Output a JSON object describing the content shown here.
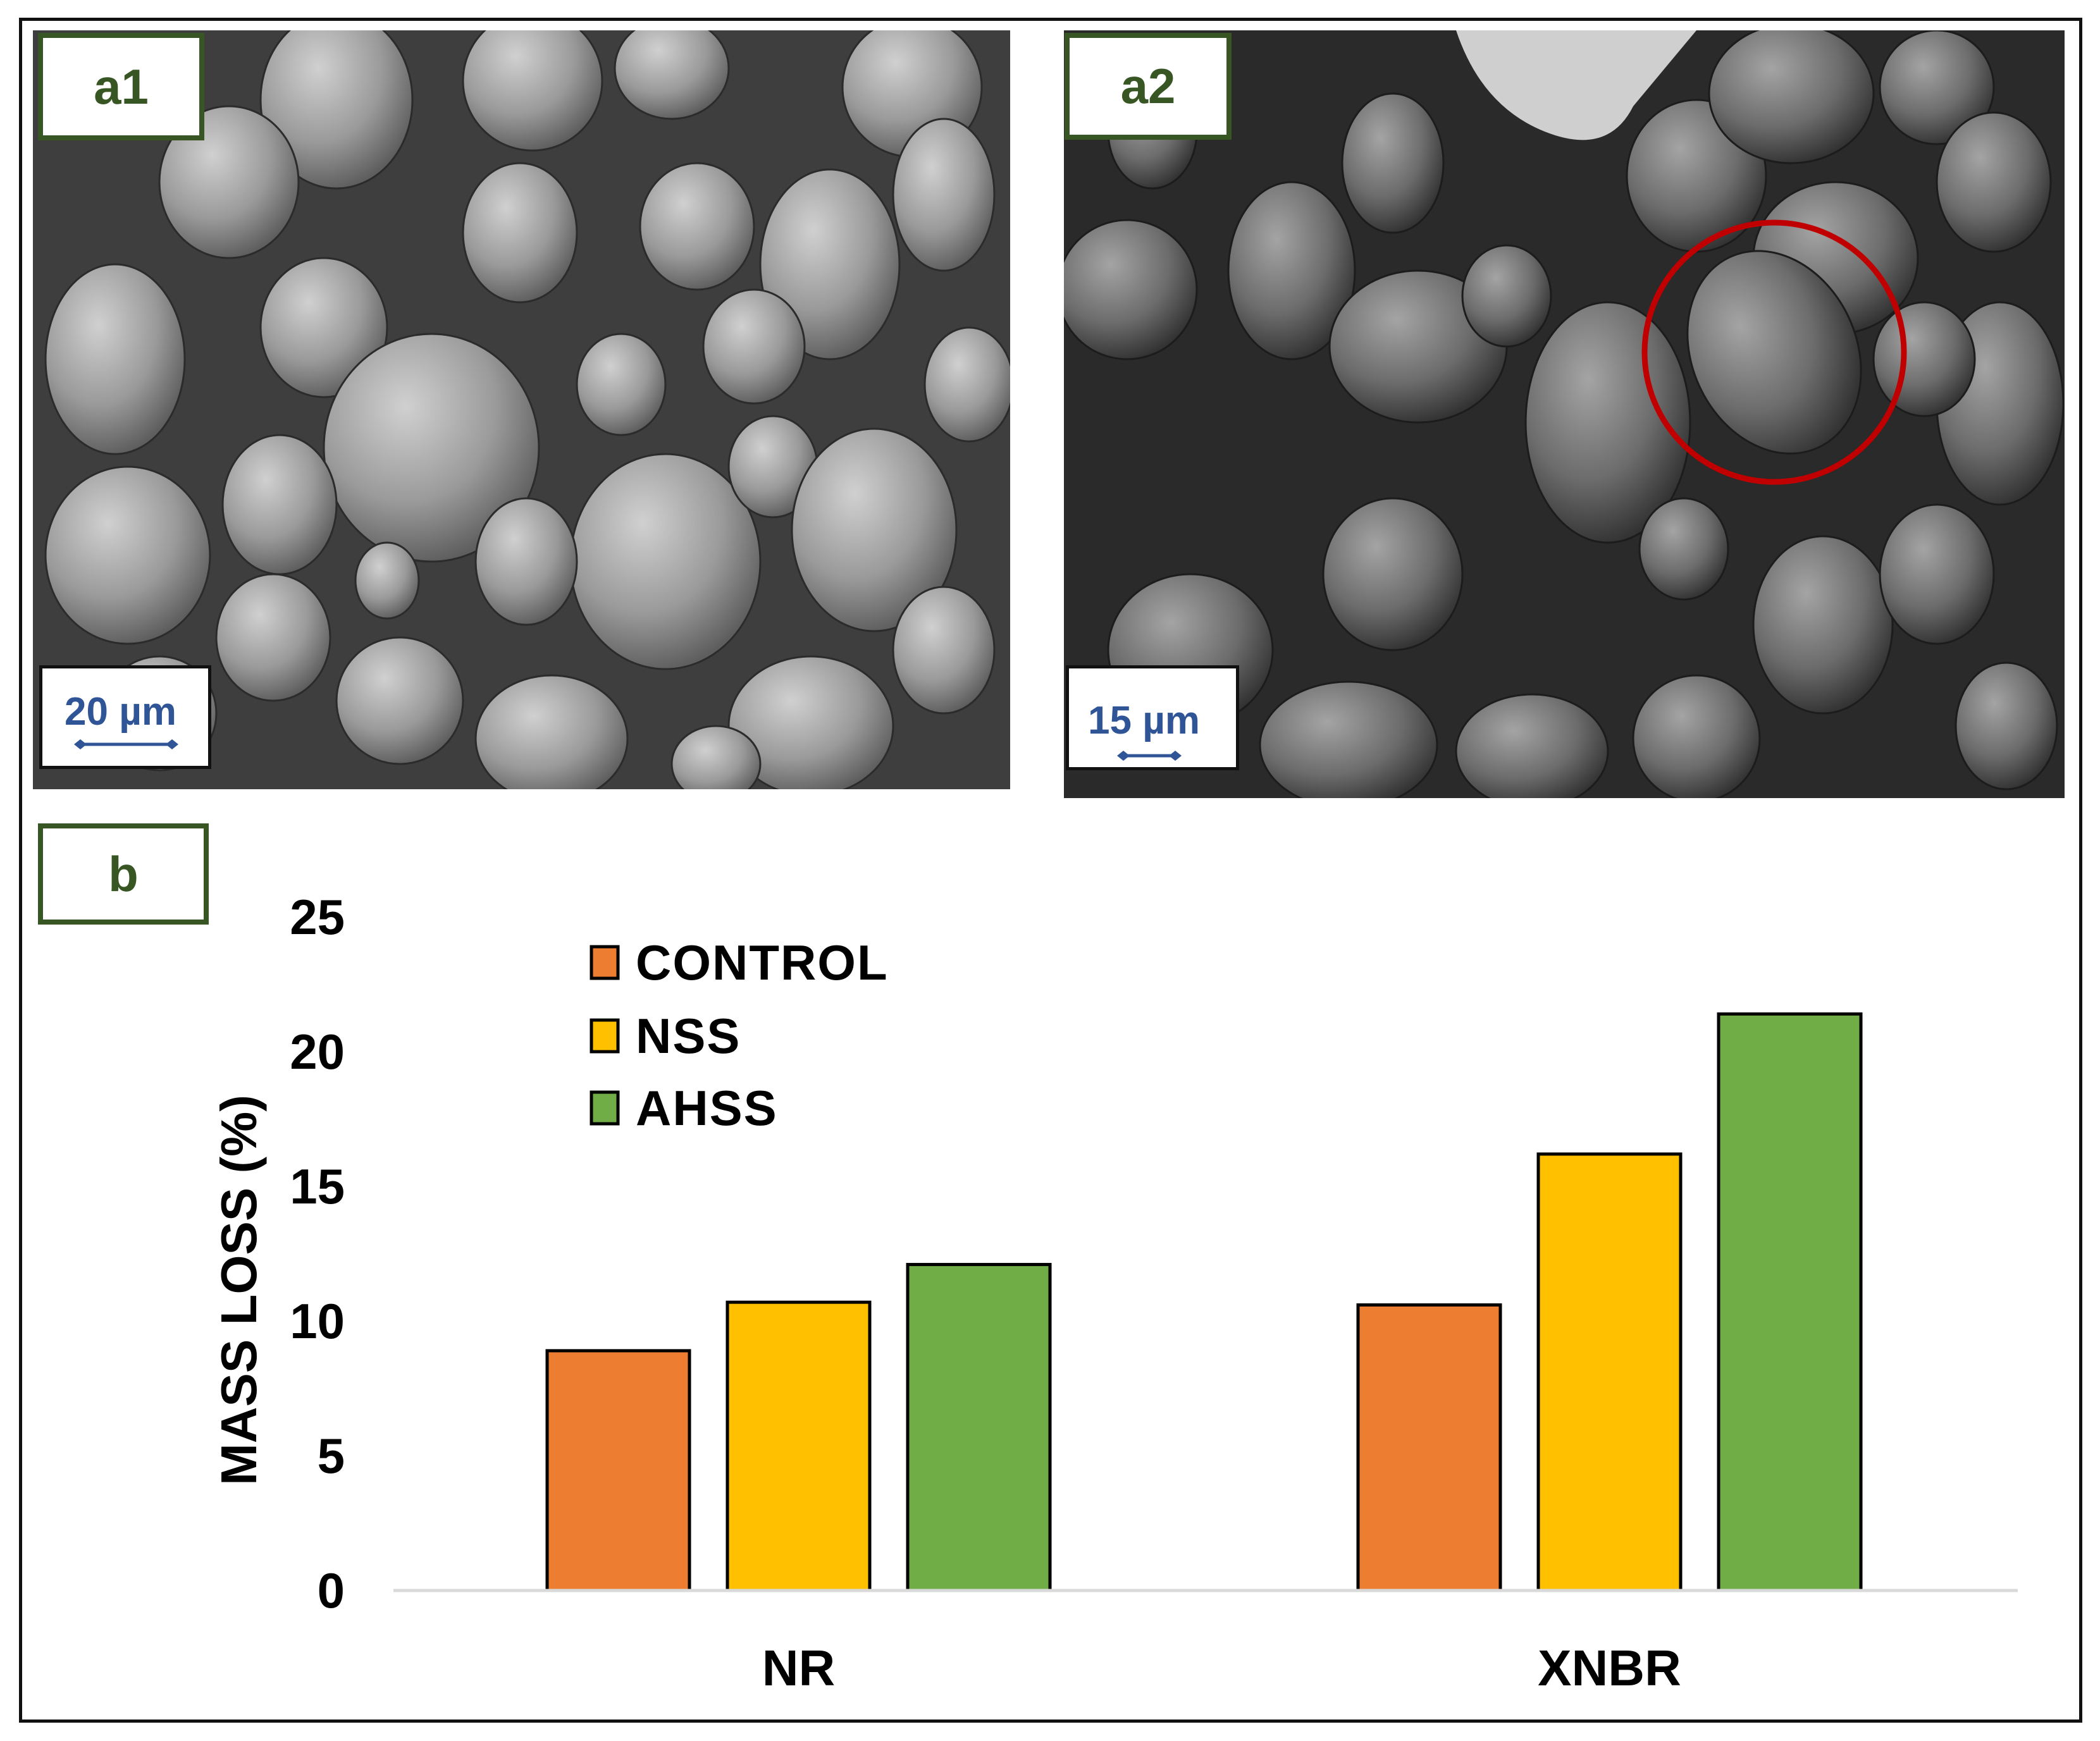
{
  "panels": {
    "a1": {
      "label": "a1",
      "scale_bar": "20 µm"
    },
    "a2": {
      "label": "a2",
      "scale_bar": "15 µm"
    },
    "b": {
      "label": "b"
    }
  },
  "colors": {
    "tag_border": "#375623",
    "scale_text": "#2F5597",
    "highlight_circle": "#C00000",
    "CONTROL": "#ED7D31",
    "NSS": "#FFC000",
    "AHSS": "#70AD47"
  },
  "chart_data": {
    "type": "bar",
    "categories": [
      "NR",
      "XNBR"
    ],
    "series": [
      {
        "name": "CONTROL",
        "values": [
          8.9,
          10.6
        ]
      },
      {
        "name": "NSS",
        "values": [
          10.7,
          16.2
        ]
      },
      {
        "name": "AHSS",
        "values": [
          12.1,
          21.4
        ]
      }
    ],
    "ylabel": "MASS LOSS (%)",
    "xlabel": "",
    "ylim": [
      0,
      25
    ],
    "yticks": [
      0,
      5,
      10,
      15,
      20,
      25
    ],
    "legend_position": "top-left",
    "grid": false
  }
}
